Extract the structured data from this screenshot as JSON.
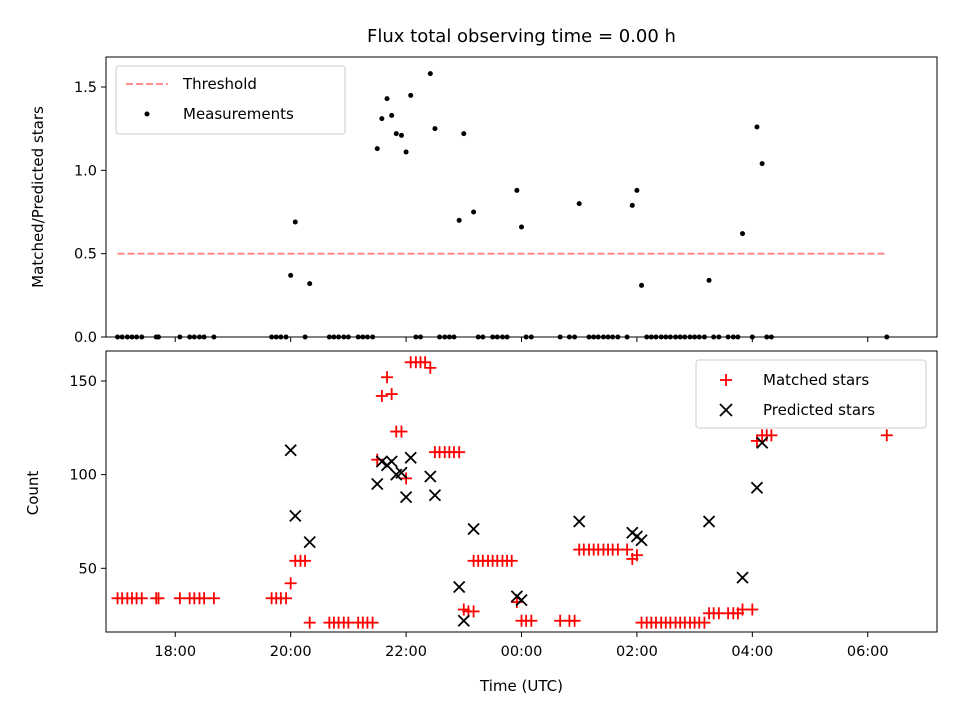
{
  "chart_data": [
    {
      "type": "scatter",
      "title": "Flux total observing time = 0.00 h",
      "ylabel": "Matched/Predicted stars",
      "xlabel": "",
      "xlim": [
        16.8,
        31.2
      ],
      "ylim": [
        0,
        1.68
      ],
      "yticks": [
        "0.0",
        "0.5",
        "1.0",
        "1.5"
      ],
      "legend_position": "upper-left",
      "threshold": {
        "name": "Threshold",
        "value": 0.5,
        "x_range": [
          17.0,
          30.33
        ],
        "color": "#ff8080"
      },
      "series": [
        {
          "name": "Measurements",
          "color": "#000000",
          "points": [
            [
              17.0,
              0
            ],
            [
              17.08,
              0
            ],
            [
              17.17,
              0
            ],
            [
              17.25,
              0
            ],
            [
              17.33,
              0
            ],
            [
              17.42,
              0
            ],
            [
              17.67,
              0
            ],
            [
              17.71,
              0
            ],
            [
              18.08,
              0
            ],
            [
              18.25,
              0
            ],
            [
              18.33,
              0
            ],
            [
              18.42,
              0
            ],
            [
              18.5,
              0
            ],
            [
              18.67,
              0
            ],
            [
              19.67,
              0
            ],
            [
              19.75,
              0
            ],
            [
              19.83,
              0
            ],
            [
              19.92,
              0
            ],
            [
              20.0,
              0.37
            ],
            [
              20.08,
              0.69
            ],
            [
              20.25,
              0
            ],
            [
              20.33,
              0.32
            ],
            [
              20.67,
              0
            ],
            [
              20.75,
              0
            ],
            [
              20.83,
              0
            ],
            [
              20.92,
              0
            ],
            [
              21.0,
              0
            ],
            [
              21.17,
              0
            ],
            [
              21.25,
              0
            ],
            [
              21.33,
              0
            ],
            [
              21.42,
              0
            ],
            [
              21.5,
              1.13
            ],
            [
              21.58,
              1.31
            ],
            [
              21.67,
              1.43
            ],
            [
              21.75,
              1.33
            ],
            [
              21.83,
              1.22
            ],
            [
              21.92,
              1.21
            ],
            [
              22.0,
              1.11
            ],
            [
              22.08,
              1.45
            ],
            [
              22.17,
              0
            ],
            [
              22.25,
              0
            ],
            [
              22.42,
              1.58
            ],
            [
              22.5,
              1.25
            ],
            [
              22.58,
              0
            ],
            [
              22.67,
              0
            ],
            [
              22.75,
              0
            ],
            [
              22.83,
              0
            ],
            [
              22.92,
              0.7
            ],
            [
              23.0,
              1.22
            ],
            [
              23.17,
              0.75
            ],
            [
              23.25,
              0
            ],
            [
              23.33,
              0
            ],
            [
              23.5,
              0
            ],
            [
              23.58,
              0
            ],
            [
              23.67,
              0
            ],
            [
              23.75,
              0
            ],
            [
              23.92,
              0.88
            ],
            [
              24.0,
              0.66
            ],
            [
              24.08,
              0
            ],
            [
              24.17,
              0
            ],
            [
              24.67,
              0
            ],
            [
              24.83,
              0
            ],
            [
              24.92,
              0
            ],
            [
              25.0,
              0.8
            ],
            [
              25.17,
              0
            ],
            [
              25.25,
              0
            ],
            [
              25.33,
              0
            ],
            [
              25.42,
              0
            ],
            [
              25.5,
              0
            ],
            [
              25.58,
              0
            ],
            [
              25.67,
              0
            ],
            [
              25.83,
              0
            ],
            [
              25.92,
              0.79
            ],
            [
              26.0,
              0.88
            ],
            [
              26.08,
              0.31
            ],
            [
              26.17,
              0
            ],
            [
              26.25,
              0
            ],
            [
              26.33,
              0
            ],
            [
              26.42,
              0
            ],
            [
              26.5,
              0
            ],
            [
              26.58,
              0
            ],
            [
              26.67,
              0
            ],
            [
              26.75,
              0
            ],
            [
              26.83,
              0
            ],
            [
              26.92,
              0
            ],
            [
              27.0,
              0
            ],
            [
              27.08,
              0
            ],
            [
              27.17,
              0
            ],
            [
              27.25,
              0.34
            ],
            [
              27.33,
              0
            ],
            [
              27.42,
              0
            ],
            [
              27.58,
              0
            ],
            [
              27.67,
              0
            ],
            [
              27.75,
              0
            ],
            [
              27.83,
              0.62
            ],
            [
              28.0,
              0
            ],
            [
              28.08,
              1.26
            ],
            [
              28.17,
              1.04
            ],
            [
              28.25,
              0
            ],
            [
              28.33,
              0
            ],
            [
              30.33,
              0
            ]
          ]
        }
      ]
    },
    {
      "type": "scatter",
      "title": "",
      "ylabel": "Count",
      "xlabel": "Time (UTC)",
      "xlim": [
        16.8,
        31.2
      ],
      "ylim": [
        16,
        166
      ],
      "yticks": [
        "50",
        "100",
        "150"
      ],
      "xticks": [
        "18:00",
        "20:00",
        "22:00",
        "00:00",
        "02:00",
        "04:00",
        "06:00"
      ],
      "xtick_values": [
        18,
        20,
        22,
        24,
        26,
        28,
        30
      ],
      "legend_position": "upper-right",
      "series": [
        {
          "name": "Matched stars",
          "marker": "plus",
          "color": "#ff0000",
          "points": [
            [
              17.0,
              34
            ],
            [
              17.08,
              34
            ],
            [
              17.17,
              34
            ],
            [
              17.25,
              34
            ],
            [
              17.33,
              34
            ],
            [
              17.42,
              34
            ],
            [
              17.67,
              34
            ],
            [
              17.71,
              34
            ],
            [
              18.08,
              34
            ],
            [
              18.25,
              34
            ],
            [
              18.33,
              34
            ],
            [
              18.42,
              34
            ],
            [
              18.5,
              34
            ],
            [
              18.67,
              34
            ],
            [
              19.67,
              34
            ],
            [
              19.75,
              34
            ],
            [
              19.83,
              34
            ],
            [
              19.92,
              34
            ],
            [
              20.0,
              42
            ],
            [
              20.08,
              54
            ],
            [
              20.17,
              54
            ],
            [
              20.25,
              54
            ],
            [
              20.33,
              21
            ],
            [
              20.67,
              21
            ],
            [
              20.75,
              21
            ],
            [
              20.83,
              21
            ],
            [
              20.92,
              21
            ],
            [
              21.0,
              21
            ],
            [
              21.17,
              21
            ],
            [
              21.25,
              21
            ],
            [
              21.33,
              21
            ],
            [
              21.42,
              21
            ],
            [
              21.5,
              108
            ],
            [
              21.58,
              142
            ],
            [
              21.67,
              152
            ],
            [
              21.75,
              143
            ],
            [
              21.83,
              123
            ],
            [
              21.92,
              123
            ],
            [
              22.0,
              98
            ],
            [
              22.08,
              160
            ],
            [
              22.17,
              160
            ],
            [
              22.25,
              160
            ],
            [
              22.33,
              160
            ],
            [
              22.42,
              157
            ],
            [
              22.5,
              112
            ],
            [
              22.58,
              112
            ],
            [
              22.67,
              112
            ],
            [
              22.75,
              112
            ],
            [
              22.83,
              112
            ],
            [
              22.92,
              112
            ],
            [
              23.0,
              28
            ],
            [
              23.08,
              27
            ],
            [
              23.17,
              27
            ],
            [
              23.17,
              54
            ],
            [
              23.25,
              54
            ],
            [
              23.33,
              54
            ],
            [
              23.42,
              54
            ],
            [
              23.5,
              54
            ],
            [
              23.58,
              54
            ],
            [
              23.67,
              54
            ],
            [
              23.75,
              54
            ],
            [
              23.83,
              54
            ],
            [
              23.92,
              32
            ],
            [
              24.0,
              22
            ],
            [
              24.08,
              22
            ],
            [
              24.17,
              22
            ],
            [
              24.67,
              22
            ],
            [
              24.83,
              22
            ],
            [
              24.92,
              22
            ],
            [
              25.0,
              60
            ],
            [
              25.08,
              60
            ],
            [
              25.17,
              60
            ],
            [
              25.25,
              60
            ],
            [
              25.33,
              60
            ],
            [
              25.42,
              60
            ],
            [
              25.5,
              60
            ],
            [
              25.58,
              60
            ],
            [
              25.67,
              60
            ],
            [
              25.83,
              60
            ],
            [
              25.92,
              55
            ],
            [
              26.0,
              57
            ],
            [
              26.08,
              21
            ],
            [
              26.17,
              21
            ],
            [
              26.25,
              21
            ],
            [
              26.33,
              21
            ],
            [
              26.42,
              21
            ],
            [
              26.5,
              21
            ],
            [
              26.58,
              21
            ],
            [
              26.67,
              21
            ],
            [
              26.75,
              21
            ],
            [
              26.83,
              21
            ],
            [
              26.92,
              21
            ],
            [
              27.0,
              21
            ],
            [
              27.08,
              21
            ],
            [
              27.17,
              21
            ],
            [
              27.25,
              26
            ],
            [
              27.33,
              26
            ],
            [
              27.42,
              26
            ],
            [
              27.58,
              26
            ],
            [
              27.67,
              26
            ],
            [
              27.75,
              26
            ],
            [
              27.83,
              28
            ],
            [
              28.0,
              28
            ],
            [
              28.08,
              118
            ],
            [
              28.17,
              121
            ],
            [
              28.25,
              121
            ],
            [
              28.33,
              121
            ],
            [
              30.33,
              121
            ]
          ]
        },
        {
          "name": "Predicted stars",
          "marker": "x",
          "color": "#000000",
          "points": [
            [
              20.0,
              113
            ],
            [
              20.08,
              78
            ],
            [
              20.33,
              64
            ],
            [
              21.5,
              95
            ],
            [
              21.58,
              107
            ],
            [
              21.67,
              105
            ],
            [
              21.75,
              107
            ],
            [
              21.83,
              100
            ],
            [
              21.92,
              101
            ],
            [
              22.0,
              88
            ],
            [
              22.08,
              109
            ],
            [
              22.42,
              99
            ],
            [
              22.5,
              89
            ],
            [
              22.92,
              40
            ],
            [
              23.0,
              22
            ],
            [
              23.17,
              71
            ],
            [
              23.92,
              35
            ],
            [
              24.0,
              33
            ],
            [
              25.0,
              75
            ],
            [
              25.92,
              69
            ],
            [
              26.0,
              67
            ],
            [
              26.08,
              65
            ],
            [
              27.25,
              75
            ],
            [
              27.83,
              45
            ],
            [
              28.08,
              93
            ],
            [
              28.17,
              117
            ]
          ]
        }
      ]
    }
  ]
}
